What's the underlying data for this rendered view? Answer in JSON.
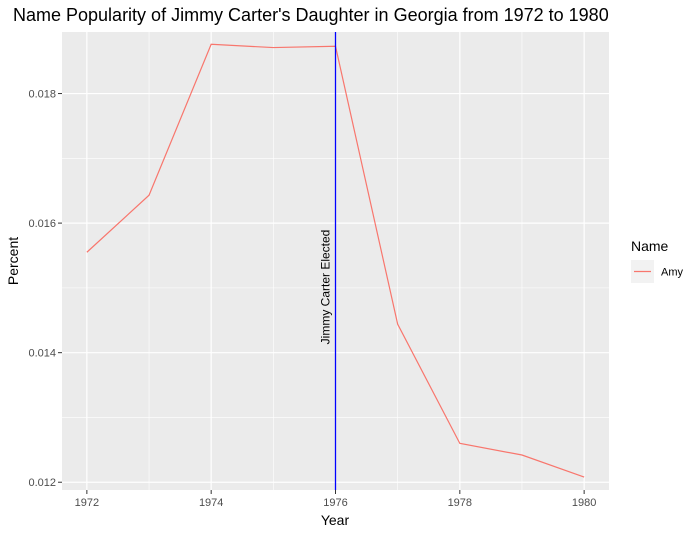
{
  "chart_data": {
    "type": "line",
    "title": "Name Popularity of Jimmy Carter's Daughter in Georgia from 1972 to 1980",
    "xlabel": "Year",
    "ylabel": "Percent",
    "xlim": [
      1971.6,
      1980.4
    ],
    "ylim": [
      0.01188,
      0.01895
    ],
    "x_ticks": [
      1972,
      1974,
      1976,
      1978,
      1980
    ],
    "y_ticks": [
      0.012,
      0.014,
      0.016,
      0.018
    ],
    "y_tick_labels": [
      "0.012",
      "0.014",
      "0.016",
      "0.018"
    ],
    "grid": true,
    "legend": {
      "title": "Name",
      "placement": "right"
    },
    "series": [
      {
        "name": "Amy",
        "color": "#F8766D",
        "x": [
          1972,
          1973,
          1974,
          1975,
          1976,
          1977,
          1978,
          1979,
          1980
        ],
        "y": [
          0.01555,
          0.01643,
          0.01876,
          0.01871,
          0.01873,
          0.01444,
          0.0126,
          0.01242,
          0.01208
        ]
      }
    ],
    "annotations": [
      {
        "type": "vline",
        "x": 1976,
        "color": "#0000FF",
        "label": "Jimmy Carter Elected"
      }
    ]
  }
}
